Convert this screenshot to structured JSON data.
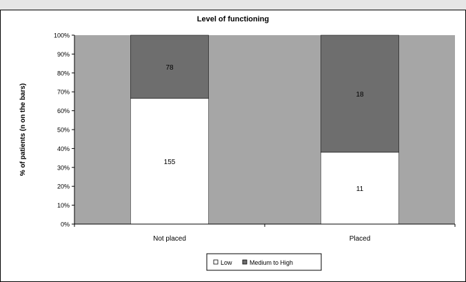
{
  "chart_data": {
    "type": "bar",
    "stacked": true,
    "title": "Level of functioning",
    "ylabel": "% of patients (n on the bars)",
    "xlabel": "",
    "categories": [
      "Not placed",
      "Placed"
    ],
    "ylim": [
      0,
      100
    ],
    "yticks": [
      "0%",
      "10%",
      "20%",
      "30%",
      "40%",
      "50%",
      "60%",
      "70%",
      "80%",
      "90%",
      "100%"
    ],
    "series": [
      {
        "name": "Low",
        "values": [
          66.5,
          38
        ],
        "labels": [
          "155",
          "11"
        ],
        "color": "#ffffff"
      },
      {
        "name": "Medium to High",
        "values": [
          33.5,
          62
        ],
        "labels": [
          "78",
          "18"
        ],
        "color": "#6e6e6e"
      }
    ],
    "plot_background": "#a6a6a6",
    "grid": false,
    "legend": "bottom"
  }
}
